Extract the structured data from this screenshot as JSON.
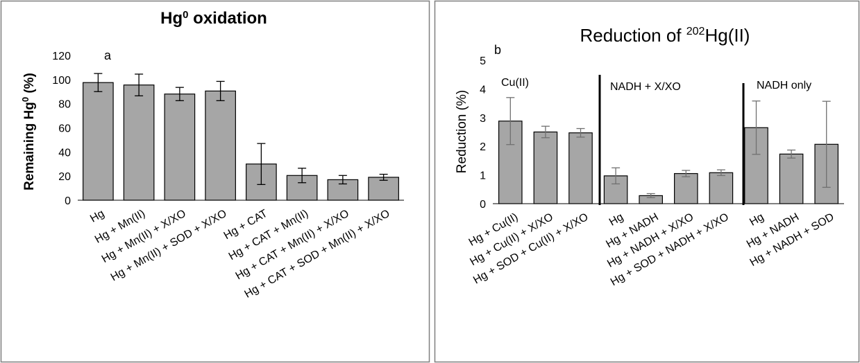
{
  "chart_data": [
    {
      "panel": "a",
      "type": "bar",
      "title_main": "Hg",
      "title_sup": "0",
      "title_rest": " oxidation",
      "ylabel_main": "Remaining Hg",
      "ylabel_sup": "0",
      "ylabel_rest": "  (%)",
      "ylim": [
        0,
        120
      ],
      "yticks": [
        0,
        20,
        40,
        60,
        80,
        100,
        120
      ],
      "grid": false,
      "bar_color": "#a6a6a6",
      "categories": [
        "Hg",
        "Hg + Mn(II)",
        "Hg + Mn(II) + X/XO",
        "Hg + Mn(II) + SOD + X/XO",
        "Hg + CAT",
        "Hg + CAT + Mn(II)",
        "Hg + CAT + Mn(II) + X/XO",
        "Hg + CAT + SOD + Mn(II) + X/XO"
      ],
      "values": [
        97.5,
        95.5,
        88,
        90.5,
        30,
        20.5,
        17,
        19
      ],
      "errors": [
        7.5,
        9,
        5.5,
        8,
        17,
        6,
        3.5,
        2.5
      ]
    },
    {
      "panel": "b",
      "type": "bar",
      "title_main": "Reduction of ",
      "title_sup": "202",
      "title_rest": "Hg(II)",
      "ylabel": "Reduction (%)",
      "ylim": [
        0,
        5
      ],
      "yticks": [
        0,
        1,
        2,
        3,
        4,
        5
      ],
      "grid": false,
      "bar_color": "#a6a6a6",
      "error_color": "#707070",
      "groups": [
        "Cu(II)",
        "NADH + X/XO",
        "NADH only"
      ],
      "categories": [
        "Hg + Cu(II)",
        "Hg + Cu(II) + X/XO",
        "Hg + SOD + Cu(II) + X/XO",
        "Hg",
        "Hg + NADH",
        "Hg + NADH + X/XO",
        "Hg + SOD + NADH + X/XO",
        "Hg",
        "Hg + NADH",
        "Hg + NADH + SOD"
      ],
      "values": [
        2.88,
        2.5,
        2.47,
        0.97,
        0.28,
        1.05,
        1.08,
        2.65,
        1.73,
        2.07
      ],
      "errors": [
        0.82,
        0.2,
        0.15,
        0.28,
        0.07,
        0.11,
        0.1,
        0.93,
        0.14,
        1.5
      ]
    }
  ]
}
